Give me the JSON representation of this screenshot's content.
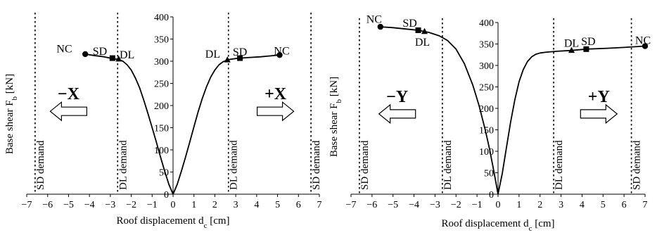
{
  "chart_data": [
    {
      "type": "line",
      "panel": "X",
      "xlabel": "Roof displacement d",
      "xlabel_sub": "c",
      "xlabel_unit": " [cm]",
      "ylabel": "Base shear F",
      "ylabel_sub": "b",
      "ylabel_unit": " [kN]",
      "xlim": [
        -7,
        7
      ],
      "ylim": [
        0,
        400
      ],
      "x_ticks": [
        -7,
        -6,
        -5,
        -4,
        -3,
        -2,
        -1,
        0,
        1,
        2,
        3,
        4,
        5,
        6,
        7
      ],
      "y_ticks": [
        0,
        50,
        100,
        150,
        200,
        250,
        300,
        350,
        400
      ],
      "grid": false,
      "series": [
        {
          "x": [
            -4.2,
            -3.8,
            -3.3,
            -2.9,
            -2.6,
            -2.4,
            -2.2,
            -2.0,
            -1.8,
            -1.6,
            -1.4,
            -1.2,
            -1.0,
            -0.8,
            -0.6,
            -0.4,
            -0.2,
            0.0
          ],
          "y": [
            316,
            313,
            310,
            306,
            304,
            300,
            292,
            280,
            262,
            240,
            212,
            182,
            150,
            118,
            84,
            52,
            22,
            0
          ]
        },
        {
          "x": [
            0.0,
            0.2,
            0.4,
            0.6,
            0.8,
            1.0,
            1.2,
            1.4,
            1.6,
            1.8,
            2.0,
            2.2,
            2.4,
            2.7,
            3.0,
            3.5,
            4.2,
            5.1
          ],
          "y": [
            0,
            22,
            52,
            84,
            118,
            152,
            186,
            216,
            242,
            264,
            280,
            292,
            299,
            304,
            306,
            308,
            310,
            314
          ]
        }
      ],
      "markers": [
        {
          "kind": "NC",
          "shape": "circle",
          "x": -4.2,
          "y": 316
        },
        {
          "kind": "SD",
          "shape": "square",
          "x": -2.9,
          "y": 307
        },
        {
          "kind": "DL",
          "shape": "triangle",
          "x": -2.6,
          "y": 305
        },
        {
          "kind": "DL",
          "shape": "triangle",
          "x": 2.6,
          "y": 303
        },
        {
          "kind": "SD",
          "shape": "square",
          "x": 3.2,
          "y": 307
        },
        {
          "kind": "NC",
          "shape": "circle",
          "x": 5.1,
          "y": 314
        }
      ],
      "marker_labels": [
        {
          "text": "NC",
          "x": -5.2,
          "y": 328
        },
        {
          "text": "SD",
          "x": -3.5,
          "y": 322
        },
        {
          "text": "DL",
          "x": -2.2,
          "y": 314
        },
        {
          "text": "DL",
          "x": 1.9,
          "y": 316
        },
        {
          "text": "SD",
          "x": 3.2,
          "y": 321
        },
        {
          "text": "NC",
          "x": 5.2,
          "y": 323
        }
      ],
      "demand_lines": [
        {
          "x": -6.6,
          "label": "SD demand"
        },
        {
          "x": -2.65,
          "label": "DL demand"
        },
        {
          "x": 2.65,
          "label": "DL demand"
        },
        {
          "x": 6.6,
          "label": "SD demand"
        }
      ],
      "arrows": [
        {
          "direction": "left",
          "label": "−X",
          "x": -5.0,
          "y": 187
        },
        {
          "direction": "right",
          "label": "+X",
          "x": 4.9,
          "y": 187
        }
      ]
    },
    {
      "type": "line",
      "panel": "Y",
      "xlabel": "Roof displacement d",
      "xlabel_sub": "c",
      "xlabel_unit": " [cm]",
      "ylabel": "Base shear F",
      "ylabel_sub": "b",
      "ylabel_unit": " [kN]",
      "xlim": [
        -7,
        7
      ],
      "ylim": [
        0,
        400
      ],
      "x_ticks": [
        -7,
        -6,
        -5,
        -4,
        -3,
        -2,
        -1,
        0,
        1,
        2,
        3,
        4,
        5,
        6,
        7
      ],
      "y_ticks": [
        0,
        50,
        100,
        150,
        200,
        250,
        300,
        350,
        400
      ],
      "grid": false,
      "series": [
        {
          "x": [
            -5.6,
            -5.0,
            -4.4,
            -3.8,
            -3.3,
            -2.8,
            -2.4,
            -2.0,
            -1.6,
            -1.2,
            -0.9,
            -0.6,
            -0.4,
            -0.2,
            0.0
          ],
          "y": [
            390,
            388,
            385,
            382,
            377,
            369,
            358,
            338,
            304,
            254,
            206,
            148,
            104,
            54,
            0
          ]
        },
        {
          "x": [
            0.0,
            0.2,
            0.4,
            0.6,
            0.8,
            1.0,
            1.2,
            1.4,
            1.6,
            1.8,
            2.0,
            2.3,
            2.8,
            3.5,
            4.2,
            5.2,
            6.0,
            7.0
          ],
          "y": [
            0,
            48,
            108,
            168,
            220,
            262,
            290,
            309,
            320,
            326,
            329,
            331,
            333,
            335,
            338,
            340,
            342,
            345
          ]
        }
      ],
      "markers": [
        {
          "kind": "NC",
          "shape": "circle",
          "x": -5.6,
          "y": 390
        },
        {
          "kind": "SD",
          "shape": "square",
          "x": -3.8,
          "y": 382
        },
        {
          "kind": "DL",
          "shape": "triangle",
          "x": -3.5,
          "y": 379
        },
        {
          "kind": "DL",
          "shape": "triangle",
          "x": 3.5,
          "y": 335
        },
        {
          "kind": "SD",
          "shape": "square",
          "x": 4.2,
          "y": 338
        },
        {
          "kind": "NC",
          "shape": "circle",
          "x": 7.0,
          "y": 345
        }
      ],
      "marker_labels": [
        {
          "text": "NC",
          "x": -5.9,
          "y": 407
        },
        {
          "text": "SD",
          "x": -4.2,
          "y": 398
        },
        {
          "text": "DL",
          "x": -3.6,
          "y": 354
        },
        {
          "text": "DL",
          "x": 3.5,
          "y": 352
        },
        {
          "text": "SD",
          "x": 4.3,
          "y": 356
        },
        {
          "text": "NC",
          "x": 6.9,
          "y": 358
        }
      ],
      "demand_lines": [
        {
          "x": -6.6,
          "label": "SD demand"
        },
        {
          "x": -2.65,
          "label": "DL demand"
        },
        {
          "x": 2.65,
          "label": "DL demand"
        },
        {
          "x": 6.35,
          "label": "SD demand"
        }
      ],
      "arrows": [
        {
          "direction": "left",
          "label": "−Y",
          "x": -4.8,
          "y": 187
        },
        {
          "direction": "right",
          "label": "+Y",
          "x": 4.8,
          "y": 187
        }
      ]
    }
  ]
}
